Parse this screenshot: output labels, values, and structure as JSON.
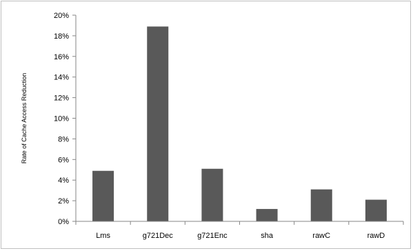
{
  "chart_data": {
    "type": "bar",
    "title": "",
    "xlabel": "",
    "ylabel": "Rate of Cache Access Reduction",
    "categories": [
      "Lms",
      "g721Dec",
      "g721Enc",
      "sha",
      "rawC",
      "rawD"
    ],
    "values": [
      4.9,
      18.9,
      5.1,
      1.2,
      3.1,
      2.1
    ],
    "ylim": [
      0,
      20
    ],
    "yticks": [
      "0%",
      "2%",
      "4%",
      "6%",
      "8%",
      "10%",
      "12%",
      "14%",
      "16%",
      "18%",
      "20%"
    ],
    "bar_color": "#595959",
    "grid": false,
    "legend": "none"
  }
}
